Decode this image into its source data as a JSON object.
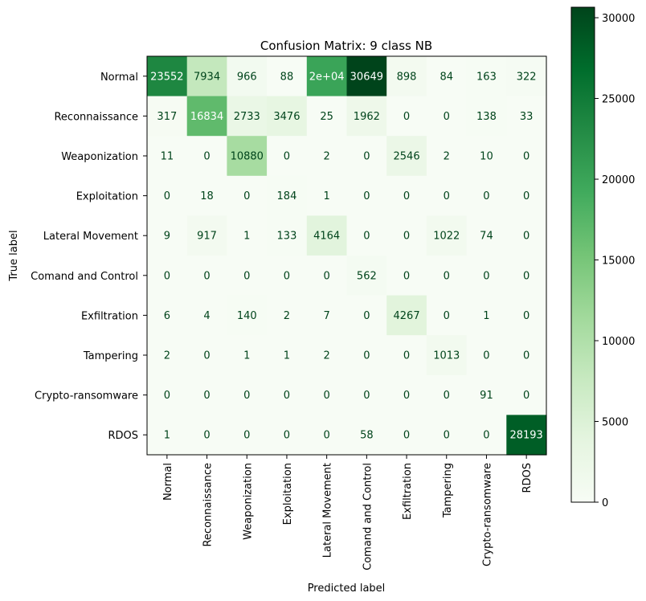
{
  "chart_data": {
    "type": "heatmap",
    "title": "Confusion Matrix: 9 class NB",
    "xlabel": "Predicted label",
    "ylabel": "True label",
    "labels": [
      "Normal",
      "Reconnaissance",
      "Weaponization",
      "Exploitation",
      "Lateral Movement",
      "Comand and Control",
      "Exfiltration",
      "Tampering",
      "Crypto-ransomware",
      "RDOS"
    ],
    "matrix": [
      [
        23552,
        7934,
        966,
        88,
        20000,
        30649,
        898,
        84,
        163,
        322
      ],
      [
        317,
        16834,
        2733,
        3476,
        25,
        1962,
        0,
        0,
        138,
        33
      ],
      [
        11,
        0,
        10880,
        0,
        2,
        0,
        2546,
        2,
        10,
        0
      ],
      [
        0,
        18,
        0,
        184,
        1,
        0,
        0,
        0,
        0,
        0
      ],
      [
        9,
        917,
        1,
        133,
        4164,
        0,
        0,
        1022,
        74,
        0
      ],
      [
        0,
        0,
        0,
        0,
        0,
        562,
        0,
        0,
        0,
        0
      ],
      [
        6,
        4,
        140,
        2,
        7,
        0,
        4267,
        0,
        1,
        0
      ],
      [
        2,
        0,
        1,
        1,
        2,
        0,
        0,
        1013,
        0,
        0
      ],
      [
        0,
        0,
        0,
        0,
        0,
        0,
        0,
        0,
        91,
        0
      ],
      [
        1,
        0,
        0,
        0,
        0,
        58,
        0,
        0,
        0,
        28193
      ]
    ],
    "cell_text": [
      [
        "23552",
        "7934",
        "966",
        "88",
        "2e+04",
        "30649",
        "898",
        "84",
        "163",
        "322"
      ],
      [
        "317",
        "16834",
        "2733",
        "3476",
        "25",
        "1962",
        "0",
        "0",
        "138",
        "33"
      ],
      [
        "11",
        "0",
        "10880",
        "0",
        "2",
        "0",
        "2546",
        "2",
        "10",
        "0"
      ],
      [
        "0",
        "18",
        "0",
        "184",
        "1",
        "0",
        "0",
        "0",
        "0",
        "0"
      ],
      [
        "9",
        "917",
        "1",
        "133",
        "4164",
        "0",
        "0",
        "1022",
        "74",
        "0"
      ],
      [
        "0",
        "0",
        "0",
        "0",
        "0",
        "562",
        "0",
        "0",
        "0",
        "0"
      ],
      [
        "6",
        "4",
        "140",
        "2",
        "7",
        "0",
        "4267",
        "0",
        "1",
        "0"
      ],
      [
        "2",
        "0",
        "1",
        "1",
        "2",
        "0",
        "0",
        "1013",
        "0",
        "0"
      ],
      [
        "0",
        "0",
        "0",
        "0",
        "0",
        "0",
        "0",
        "0",
        "91",
        "0"
      ],
      [
        "1",
        "0",
        "0",
        "0",
        "0",
        "58",
        "0",
        "0",
        "0",
        "28193"
      ]
    ],
    "colorbar": {
      "min": 0,
      "max": 30649,
      "ticks": [
        0,
        5000,
        10000,
        15000,
        20000,
        25000,
        30000
      ]
    },
    "colormap": "Greens",
    "text_color_light": "#ffffff",
    "text_color_dark": "#00441b"
  }
}
